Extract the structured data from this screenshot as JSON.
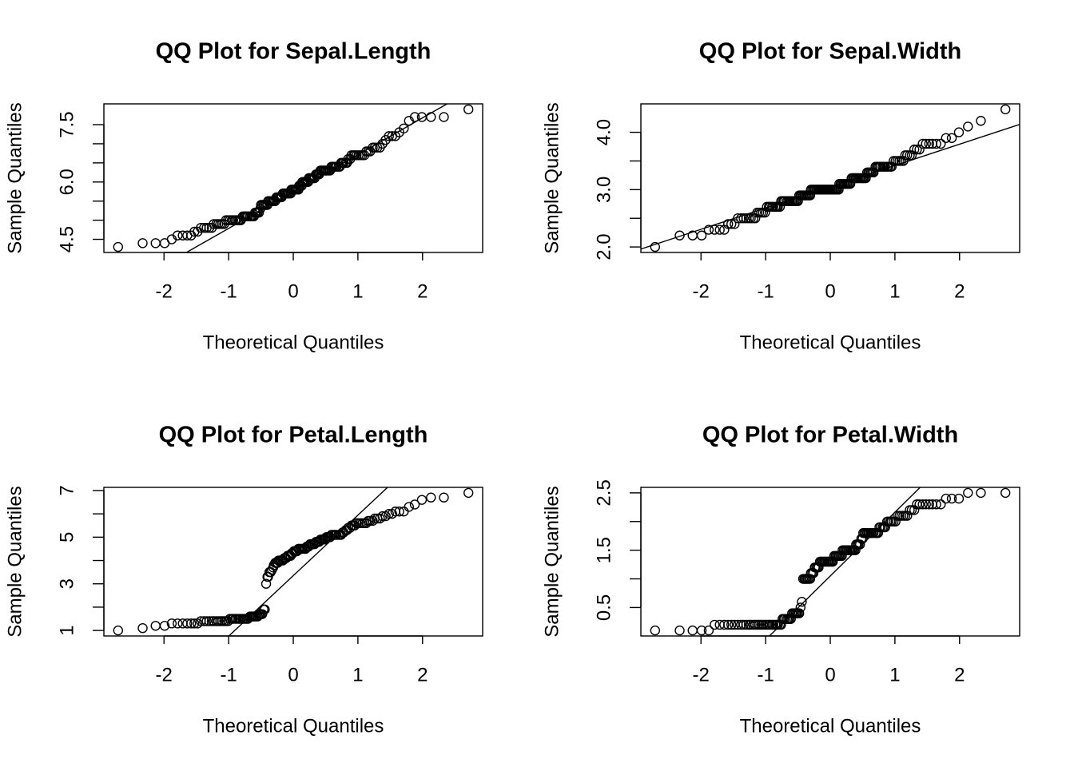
{
  "chart_data": [
    {
      "type": "scatter",
      "title": "QQ Plot for Sepal.Length",
      "xlabel": "Theoretical Quantiles",
      "ylabel": "Sample Quantiles",
      "xlim": [
        -2.93,
        2.93
      ],
      "xticks": [
        -2,
        -1,
        0,
        1,
        2
      ],
      "ylim": [
        4.156,
        8.044
      ],
      "yticks": [
        4.5,
        {
          "value": 5,
          "label": null
        },
        {
          "value": 5.5,
          "label": null
        },
        {
          "value": 6,
          "label": "6.0"
        },
        {
          "value": 6.5,
          "label": null
        },
        {
          "value": 7,
          "label": null
        },
        7.5
      ],
      "qqline": {
        "intercept": 5.75,
        "slope": 0.964
      },
      "color": "#000000",
      "x": [
        -2.71,
        -2.33,
        -2.13,
        -1.99,
        -1.88,
        -1.79,
        -1.71,
        -1.64,
        -1.58,
        -1.53,
        -1.48,
        -1.43,
        -1.38,
        -1.34,
        -1.3,
        -1.26,
        -1.23,
        -1.19,
        -1.16,
        -1.13,
        -1.1,
        -1.07,
        -1.04,
        -1.01,
        -0.98,
        -0.95,
        -0.93,
        -0.9,
        -0.88,
        -0.85,
        -0.83,
        -0.81,
        -0.78,
        -0.76,
        -0.74,
        -0.72,
        -0.7,
        -0.67,
        -0.65,
        -0.63,
        -0.61,
        -0.59,
        -0.57,
        -0.55,
        -0.53,
        -0.51,
        -0.5,
        -0.48,
        -0.46,
        -0.44,
        -0.42,
        -0.4,
        -0.39,
        -0.37,
        -0.35,
        -0.33,
        -0.31,
        -0.3,
        -0.28,
        -0.26,
        -0.24,
        -0.23,
        -0.21,
        -0.19,
        -0.18,
        -0.16,
        -0.14,
        -0.13,
        -0.11,
        -0.09,
        -0.08,
        -0.06,
        -0.04,
        -0.03,
        -0.01,
        0.01,
        0.03,
        0.04,
        0.06,
        0.08,
        0.09,
        0.11,
        0.13,
        0.14,
        0.16,
        0.18,
        0.19,
        0.21,
        0.23,
        0.24,
        0.26,
        0.28,
        0.3,
        0.31,
        0.33,
        0.35,
        0.37,
        0.39,
        0.4,
        0.42,
        0.44,
        0.46,
        0.48,
        0.5,
        0.51,
        0.53,
        0.55,
        0.57,
        0.59,
        0.61,
        0.63,
        0.65,
        0.67,
        0.7,
        0.72,
        0.74,
        0.76,
        0.78,
        0.81,
        0.83,
        0.85,
        0.88,
        0.9,
        0.93,
        0.95,
        0.98,
        1.01,
        1.04,
        1.07,
        1.1,
        1.13,
        1.16,
        1.19,
        1.23,
        1.26,
        1.3,
        1.34,
        1.38,
        1.43,
        1.48,
        1.53,
        1.58,
        1.64,
        1.71,
        1.79,
        1.88,
        1.99,
        2.13,
        2.33,
        2.71
      ],
      "values": [
        4.3,
        4.4,
        4.4,
        4.4,
        4.5,
        4.6,
        4.6,
        4.6,
        4.6,
        4.7,
        4.7,
        4.8,
        4.8,
        4.8,
        4.8,
        4.8,
        4.9,
        4.9,
        4.9,
        4.9,
        4.9,
        4.9,
        5,
        5,
        5,
        5,
        5,
        5,
        5,
        5,
        5,
        5,
        5.1,
        5.1,
        5.1,
        5.1,
        5.1,
        5.1,
        5.1,
        5.1,
        5.1,
        5.2,
        5.2,
        5.2,
        5.2,
        5.3,
        5.4,
        5.4,
        5.4,
        5.4,
        5.4,
        5.4,
        5.5,
        5.5,
        5.5,
        5.5,
        5.5,
        5.5,
        5.5,
        5.6,
        5.6,
        5.6,
        5.6,
        5.6,
        5.6,
        5.7,
        5.7,
        5.7,
        5.7,
        5.7,
        5.7,
        5.7,
        5.7,
        5.8,
        5.8,
        5.8,
        5.8,
        5.8,
        5.8,
        5.8,
        5.9,
        5.9,
        5.9,
        6,
        6,
        6,
        6,
        6,
        6,
        6.1,
        6.1,
        6.1,
        6.1,
        6.1,
        6.1,
        6.2,
        6.2,
        6.2,
        6.2,
        6.3,
        6.3,
        6.3,
        6.3,
        6.3,
        6.3,
        6.3,
        6.3,
        6.3,
        6.4,
        6.4,
        6.4,
        6.4,
        6.4,
        6.4,
        6.4,
        6.5,
        6.5,
        6.5,
        6.5,
        6.5,
        6.6,
        6.6,
        6.7,
        6.7,
        6.7,
        6.7,
        6.7,
        6.7,
        6.7,
        6.7,
        6.8,
        6.8,
        6.8,
        6.9,
        6.9,
        6.9,
        6.9,
        7,
        7.1,
        7.2,
        7.2,
        7.2,
        7.3,
        7.4,
        7.6,
        7.7,
        7.7,
        7.7,
        7.7,
        7.9
      ]
    },
    {
      "type": "scatter",
      "title": "QQ Plot for Sepal.Width",
      "xlabel": "Theoretical Quantiles",
      "ylabel": "Sample Quantiles",
      "xlim": [
        -2.93,
        2.93
      ],
      "xticks": [
        -2,
        -1,
        0,
        1,
        2
      ],
      "ylim": [
        1.904,
        4.496
      ],
      "yticks": [
        {
          "value": 2,
          "label": "2.0"
        },
        {
          "value": 2.5,
          "label": null
        },
        {
          "value": 3,
          "label": "3.0"
        },
        {
          "value": 3.5,
          "label": null
        },
        {
          "value": 4,
          "label": "4.0"
        }
      ],
      "qqline": {
        "intercept": 3.05,
        "slope": 0.371
      },
      "color": "#000000",
      "x": [
        -2.71,
        -2.33,
        -2.13,
        -1.99,
        -1.88,
        -1.79,
        -1.71,
        -1.64,
        -1.58,
        -1.53,
        -1.48,
        -1.43,
        -1.38,
        -1.34,
        -1.3,
        -1.26,
        -1.23,
        -1.19,
        -1.16,
        -1.13,
        -1.1,
        -1.07,
        -1.04,
        -1.01,
        -0.98,
        -0.95,
        -0.93,
        -0.9,
        -0.88,
        -0.85,
        -0.83,
        -0.81,
        -0.78,
        -0.76,
        -0.74,
        -0.72,
        -0.7,
        -0.67,
        -0.65,
        -0.63,
        -0.61,
        -0.59,
        -0.57,
        -0.55,
        -0.53,
        -0.51,
        -0.5,
        -0.48,
        -0.46,
        -0.44,
        -0.42,
        -0.4,
        -0.39,
        -0.37,
        -0.35,
        -0.33,
        -0.31,
        -0.3,
        -0.28,
        -0.26,
        -0.24,
        -0.23,
        -0.21,
        -0.19,
        -0.18,
        -0.16,
        -0.14,
        -0.13,
        -0.11,
        -0.09,
        -0.08,
        -0.06,
        -0.04,
        -0.03,
        -0.01,
        0.01,
        0.03,
        0.04,
        0.06,
        0.08,
        0.09,
        0.11,
        0.13,
        0.14,
        0.16,
        0.18,
        0.19,
        0.21,
        0.23,
        0.24,
        0.26,
        0.28,
        0.3,
        0.31,
        0.33,
        0.35,
        0.37,
        0.39,
        0.4,
        0.42,
        0.44,
        0.46,
        0.48,
        0.5,
        0.51,
        0.53,
        0.55,
        0.57,
        0.59,
        0.61,
        0.63,
        0.65,
        0.67,
        0.7,
        0.72,
        0.74,
        0.76,
        0.78,
        0.81,
        0.83,
        0.85,
        0.88,
        0.9,
        0.93,
        0.95,
        0.98,
        1.01,
        1.04,
        1.07,
        1.1,
        1.13,
        1.16,
        1.19,
        1.23,
        1.26,
        1.3,
        1.34,
        1.38,
        1.43,
        1.48,
        1.53,
        1.58,
        1.64,
        1.71,
        1.79,
        1.88,
        1.99,
        2.13,
        2.33,
        2.71
      ],
      "values": [
        2,
        2.2,
        2.2,
        2.2,
        2.3,
        2.3,
        2.3,
        2.3,
        2.4,
        2.4,
        2.4,
        2.5,
        2.5,
        2.5,
        2.5,
        2.5,
        2.5,
        2.5,
        2.5,
        2.6,
        2.6,
        2.6,
        2.6,
        2.6,
        2.7,
        2.7,
        2.7,
        2.7,
        2.7,
        2.7,
        2.7,
        2.7,
        2.7,
        2.8,
        2.8,
        2.8,
        2.8,
        2.8,
        2.8,
        2.8,
        2.8,
        2.8,
        2.8,
        2.8,
        2.8,
        2.8,
        2.8,
        2.9,
        2.9,
        2.9,
        2.9,
        2.9,
        2.9,
        2.9,
        2.9,
        2.9,
        2.9,
        3,
        3,
        3,
        3,
        3,
        3,
        3,
        3,
        3,
        3,
        3,
        3,
        3,
        3,
        3,
        3,
        3,
        3,
        3,
        3,
        3,
        3,
        3,
        3,
        3,
        3,
        3.1,
        3.1,
        3.1,
        3.1,
        3.1,
        3.1,
        3.1,
        3.1,
        3.1,
        3.1,
        3.1,
        3.2,
        3.2,
        3.2,
        3.2,
        3.2,
        3.2,
        3.2,
        3.2,
        3.2,
        3.2,
        3.2,
        3.2,
        3.2,
        3.3,
        3.3,
        3.3,
        3.3,
        3.3,
        3.3,
        3.4,
        3.4,
        3.4,
        3.4,
        3.4,
        3.4,
        3.4,
        3.4,
        3.4,
        3.4,
        3.4,
        3.4,
        3.5,
        3.5,
        3.5,
        3.5,
        3.5,
        3.5,
        3.6,
        3.6,
        3.6,
        3.6,
        3.7,
        3.7,
        3.7,
        3.8,
        3.8,
        3.8,
        3.8,
        3.8,
        3.8,
        3.9,
        3.9,
        4,
        4.1,
        4.2,
        4.4
      ]
    },
    {
      "type": "scatter",
      "title": "QQ Plot for Petal.Length",
      "xlabel": "Theoretical Quantiles",
      "ylabel": "Sample Quantiles",
      "xlim": [
        -2.93,
        2.93
      ],
      "xticks": [
        -2,
        -1,
        0,
        1,
        2
      ],
      "ylim": [
        0.764,
        7.136
      ],
      "yticks": [
        1,
        {
          "value": 2,
          "label": null
        },
        3,
        {
          "value": 4,
          "label": null
        },
        5,
        {
          "value": 6,
          "label": null
        },
        7
      ],
      "qqline": {
        "intercept": 3.35,
        "slope": 2.595
      },
      "color": "#000000",
      "x": [
        -2.71,
        -2.33,
        -2.13,
        -1.99,
        -1.88,
        -1.79,
        -1.71,
        -1.64,
        -1.58,
        -1.53,
        -1.48,
        -1.43,
        -1.38,
        -1.34,
        -1.3,
        -1.26,
        -1.23,
        -1.19,
        -1.16,
        -1.13,
        -1.1,
        -1.07,
        -1.04,
        -1.01,
        -0.98,
        -0.95,
        -0.93,
        -0.9,
        -0.88,
        -0.85,
        -0.83,
        -0.81,
        -0.78,
        -0.76,
        -0.74,
        -0.72,
        -0.7,
        -0.67,
        -0.65,
        -0.63,
        -0.61,
        -0.59,
        -0.57,
        -0.55,
        -0.53,
        -0.51,
        -0.5,
        -0.48,
        -0.46,
        -0.44,
        -0.42,
        -0.4,
        -0.39,
        -0.37,
        -0.35,
        -0.33,
        -0.31,
        -0.3,
        -0.28,
        -0.26,
        -0.24,
        -0.23,
        -0.21,
        -0.19,
        -0.18,
        -0.16,
        -0.14,
        -0.13,
        -0.11,
        -0.09,
        -0.08,
        -0.06,
        -0.04,
        -0.03,
        -0.01,
        0.01,
        0.03,
        0.04,
        0.06,
        0.08,
        0.09,
        0.11,
        0.13,
        0.14,
        0.16,
        0.18,
        0.19,
        0.21,
        0.23,
        0.24,
        0.26,
        0.28,
        0.3,
        0.31,
        0.33,
        0.35,
        0.37,
        0.39,
        0.4,
        0.42,
        0.44,
        0.46,
        0.48,
        0.5,
        0.51,
        0.53,
        0.55,
        0.57,
        0.59,
        0.61,
        0.63,
        0.65,
        0.67,
        0.7,
        0.72,
        0.74,
        0.76,
        0.78,
        0.81,
        0.83,
        0.85,
        0.88,
        0.9,
        0.93,
        0.95,
        0.98,
        1.01,
        1.04,
        1.07,
        1.1,
        1.13,
        1.16,
        1.19,
        1.23,
        1.26,
        1.3,
        1.34,
        1.38,
        1.43,
        1.48,
        1.53,
        1.58,
        1.64,
        1.71,
        1.79,
        1.88,
        1.99,
        2.13,
        2.33,
        2.71
      ],
      "values": [
        1,
        1.1,
        1.2,
        1.2,
        1.3,
        1.3,
        1.3,
        1.3,
        1.3,
        1.3,
        1.3,
        1.4,
        1.4,
        1.4,
        1.4,
        1.4,
        1.4,
        1.4,
        1.4,
        1.4,
        1.4,
        1.4,
        1.4,
        1.4,
        1.5,
        1.5,
        1.5,
        1.5,
        1.5,
        1.5,
        1.5,
        1.5,
        1.5,
        1.5,
        1.5,
        1.5,
        1.5,
        1.6,
        1.6,
        1.6,
        1.6,
        1.6,
        1.6,
        1.6,
        1.7,
        1.7,
        1.7,
        1.7,
        1.9,
        1.9,
        3,
        3.3,
        3.3,
        3.5,
        3.5,
        3.6,
        3.7,
        3.8,
        3.9,
        3.9,
        3.9,
        4,
        4,
        4,
        4,
        4,
        4.1,
        4.1,
        4.1,
        4.2,
        4.2,
        4.2,
        4.2,
        4.3,
        4.3,
        4.4,
        4.4,
        4.4,
        4.4,
        4.5,
        4.5,
        4.5,
        4.5,
        4.5,
        4.5,
        4.5,
        4.5,
        4.6,
        4.6,
        4.6,
        4.7,
        4.7,
        4.7,
        4.7,
        4.7,
        4.8,
        4.8,
        4.8,
        4.8,
        4.9,
        4.9,
        4.9,
        4.9,
        4.9,
        5,
        5,
        5,
        5,
        5.1,
        5.1,
        5.1,
        5.1,
        5.1,
        5.1,
        5.1,
        5.1,
        5.2,
        5.2,
        5.3,
        5.3,
        5.4,
        5.4,
        5.5,
        5.5,
        5.5,
        5.6,
        5.6,
        5.6,
        5.6,
        5.6,
        5.6,
        5.7,
        5.7,
        5.7,
        5.8,
        5.8,
        5.8,
        5.9,
        5.9,
        6,
        6,
        6.1,
        6.1,
        6.1,
        6.3,
        6.4,
        6.6,
        6.7,
        6.7,
        6.9
      ]
    },
    {
      "type": "scatter",
      "title": "QQ Plot for Petal.Width",
      "xlabel": "Theoretical Quantiles",
      "ylabel": "Sample Quantiles",
      "xlim": [
        -2.93,
        2.93
      ],
      "xticks": [
        -2,
        -1,
        0,
        1,
        2
      ],
      "ylim": [
        0.004,
        2.596
      ],
      "yticks": [
        0.5,
        {
          "value": 1,
          "label": null
        },
        1.5,
        {
          "value": 2,
          "label": null
        },
        2.5
      ],
      "qqline": {
        "intercept": 1.05,
        "slope": 1.112
      },
      "color": "#000000",
      "x": [
        -2.71,
        -2.33,
        -2.13,
        -1.99,
        -1.88,
        -1.79,
        -1.71,
        -1.64,
        -1.58,
        -1.53,
        -1.48,
        -1.43,
        -1.38,
        -1.34,
        -1.3,
        -1.26,
        -1.23,
        -1.19,
        -1.16,
        -1.13,
        -1.1,
        -1.07,
        -1.04,
        -1.01,
        -0.98,
        -0.95,
        -0.93,
        -0.9,
        -0.88,
        -0.85,
        -0.83,
        -0.81,
        -0.78,
        -0.76,
        -0.74,
        -0.72,
        -0.7,
        -0.67,
        -0.65,
        -0.63,
        -0.61,
        -0.59,
        -0.57,
        -0.55,
        -0.53,
        -0.51,
        -0.5,
        -0.48,
        -0.46,
        -0.44,
        -0.42,
        -0.4,
        -0.39,
        -0.37,
        -0.35,
        -0.33,
        -0.31,
        -0.3,
        -0.28,
        -0.26,
        -0.24,
        -0.23,
        -0.21,
        -0.19,
        -0.18,
        -0.16,
        -0.14,
        -0.13,
        -0.11,
        -0.09,
        -0.08,
        -0.06,
        -0.04,
        -0.03,
        -0.01,
        0.01,
        0.03,
        0.04,
        0.06,
        0.08,
        0.09,
        0.11,
        0.13,
        0.14,
        0.16,
        0.18,
        0.19,
        0.21,
        0.23,
        0.24,
        0.26,
        0.28,
        0.3,
        0.31,
        0.33,
        0.35,
        0.37,
        0.39,
        0.4,
        0.42,
        0.44,
        0.46,
        0.48,
        0.5,
        0.51,
        0.53,
        0.55,
        0.57,
        0.59,
        0.61,
        0.63,
        0.65,
        0.67,
        0.7,
        0.72,
        0.74,
        0.76,
        0.78,
        0.81,
        0.83,
        0.85,
        0.88,
        0.9,
        0.93,
        0.95,
        0.98,
        1.01,
        1.04,
        1.07,
        1.1,
        1.13,
        1.16,
        1.19,
        1.23,
        1.26,
        1.3,
        1.34,
        1.38,
        1.43,
        1.48,
        1.53,
        1.58,
        1.64,
        1.71,
        1.79,
        1.88,
        1.99,
        2.13,
        2.33,
        2.71
      ],
      "values": [
        0.1,
        0.1,
        0.1,
        0.1,
        0.1,
        0.2,
        0.2,
        0.2,
        0.2,
        0.2,
        0.2,
        0.2,
        0.2,
        0.2,
        0.2,
        0.2,
        0.2,
        0.2,
        0.2,
        0.2,
        0.2,
        0.2,
        0.2,
        0.2,
        0.2,
        0.2,
        0.2,
        0.2,
        0.2,
        0.2,
        0.2,
        0.2,
        0.2,
        0.2,
        0.3,
        0.3,
        0.3,
        0.3,
        0.3,
        0.3,
        0.3,
        0.4,
        0.4,
        0.4,
        0.4,
        0.4,
        0.4,
        0.4,
        0.5,
        0.6,
        1,
        1,
        1,
        1,
        1,
        1,
        1,
        1.1,
        1.1,
        1.1,
        1.2,
        1.2,
        1.2,
        1.2,
        1.2,
        1.3,
        1.3,
        1.3,
        1.3,
        1.3,
        1.3,
        1.3,
        1.3,
        1.3,
        1.3,
        1.3,
        1.3,
        1.3,
        1.4,
        1.4,
        1.4,
        1.4,
        1.4,
        1.4,
        1.4,
        1.4,
        1.5,
        1.5,
        1.5,
        1.5,
        1.5,
        1.5,
        1.5,
        1.5,
        1.5,
        1.5,
        1.5,
        1.5,
        1.6,
        1.6,
        1.6,
        1.6,
        1.7,
        1.7,
        1.8,
        1.8,
        1.8,
        1.8,
        1.8,
        1.8,
        1.8,
        1.8,
        1.8,
        1.8,
        1.8,
        1.8,
        1.9,
        1.9,
        1.9,
        1.9,
        1.9,
        2,
        2,
        2,
        2,
        2,
        2,
        2.1,
        2.1,
        2.1,
        2.1,
        2.1,
        2.1,
        2.2,
        2.2,
        2.2,
        2.3,
        2.3,
        2.3,
        2.3,
        2.3,
        2.3,
        2.3,
        2.3,
        2.4,
        2.4,
        2.4,
        2.5,
        2.5,
        2.5
      ]
    }
  ]
}
